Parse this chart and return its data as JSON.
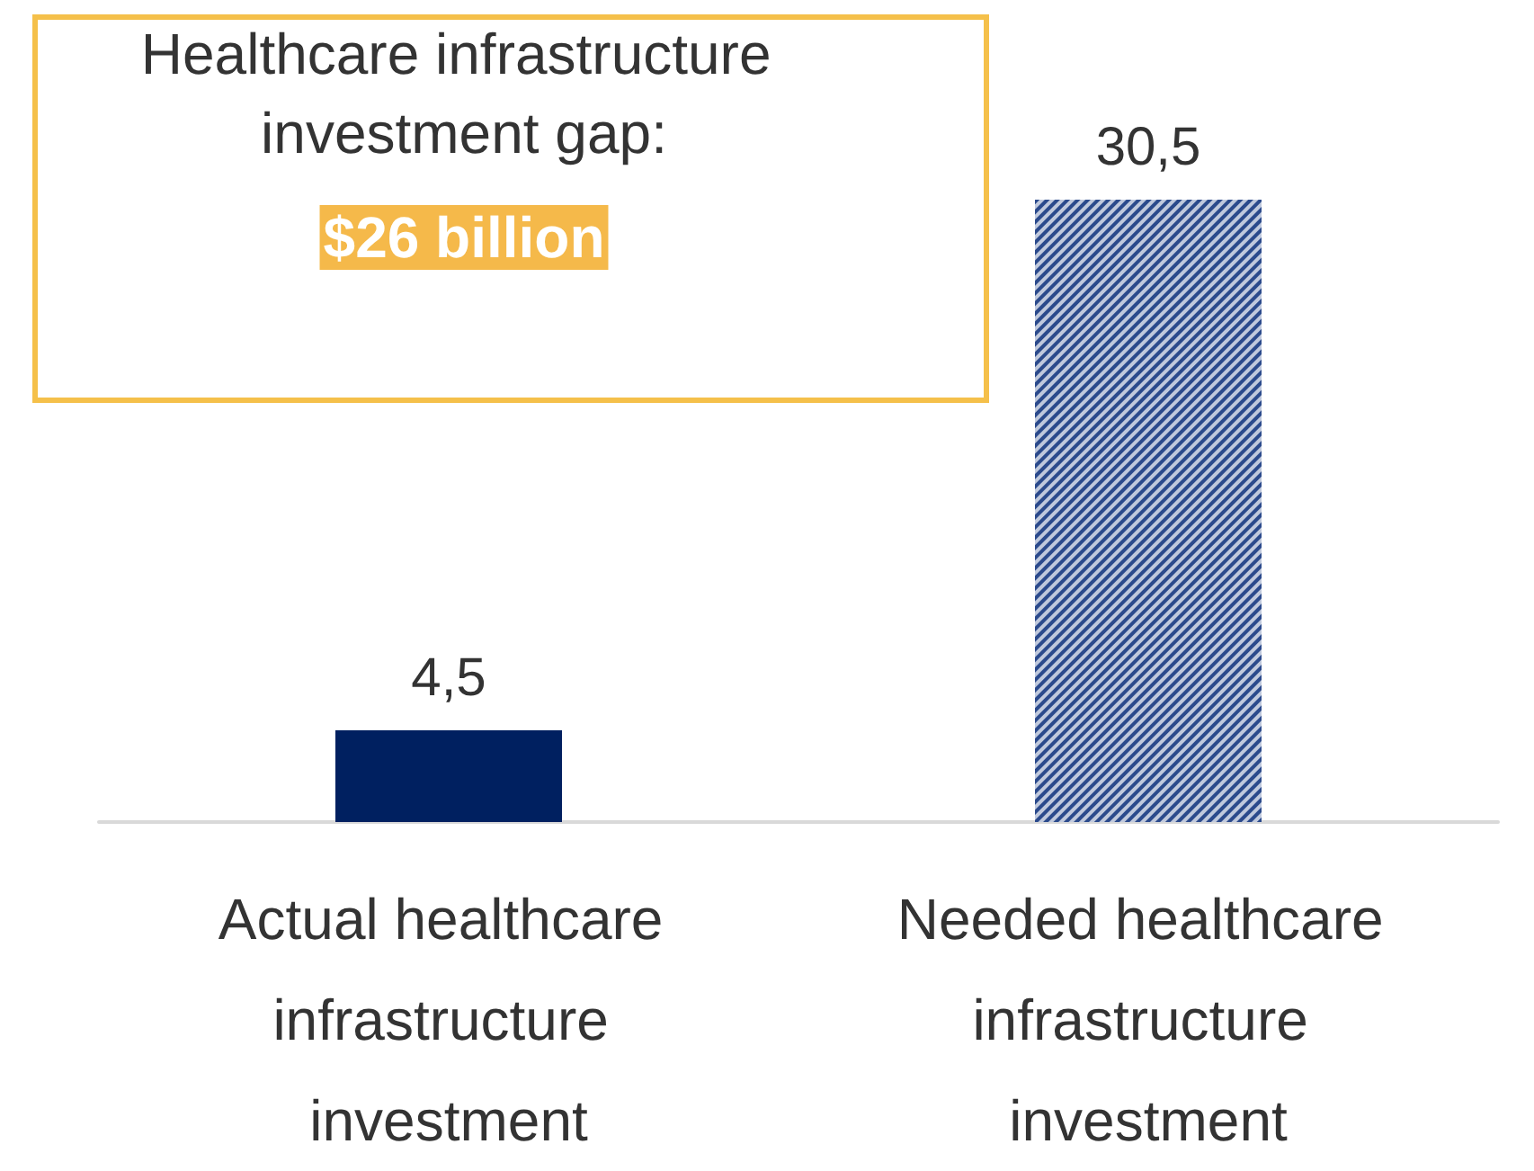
{
  "chart_data": {
    "type": "bar",
    "categories": [
      "Actual healthcare infrastructure investment",
      "Needed healthcare infrastructure investment"
    ],
    "values": [
      4.5,
      30.5
    ],
    "value_labels": [
      "4,5",
      "30,5"
    ],
    "colors": [
      "#002060",
      "#2b4a8c"
    ],
    "annotations": [
      "Healthcare infrastructure investment gap:",
      "$26 billion"
    ]
  }
}
